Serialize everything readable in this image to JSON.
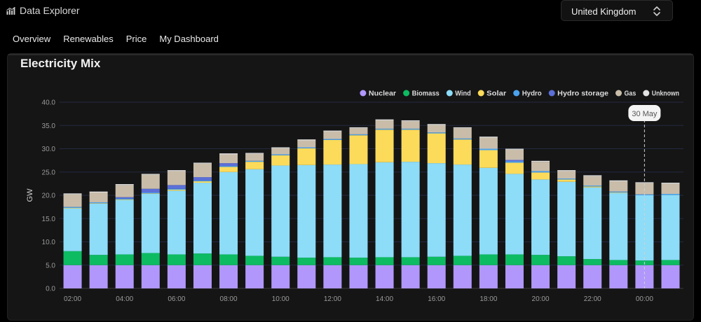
{
  "app": {
    "title": "Data Explorer",
    "icon": "bar-chart-icon"
  },
  "region_select": {
    "value": "United Kingdom",
    "icon": "chevron-up-down-icon"
  },
  "tabs": [
    {
      "label": "Overview"
    },
    {
      "label": "Renewables"
    },
    {
      "label": "Price"
    },
    {
      "label": "My Dashboard"
    }
  ],
  "panel": {
    "title": "Electricity Mix"
  },
  "chart_data": {
    "type": "stacked-bar",
    "title": "Electricity Mix",
    "xlabel": "",
    "ylabel": "GW",
    "ylim": [
      0,
      40
    ],
    "yticks": [
      "0.0",
      "5.0",
      "10.0",
      "15.0",
      "20.0",
      "25.0",
      "30.0",
      "35.0",
      "40.0"
    ],
    "grid": true,
    "legend_position": "top-right",
    "categories": [
      "02:00",
      "03:00",
      "04:00",
      "05:00",
      "06:00",
      "07:00",
      "08:00",
      "09:00",
      "10:00",
      "11:00",
      "12:00",
      "13:00",
      "14:00",
      "15:00",
      "16:00",
      "17:00",
      "18:00",
      "19:00",
      "20:00",
      "21:00",
      "22:00",
      "23:00",
      "00:00",
      "01:00"
    ],
    "xtick_labels": [
      "02:00",
      "04:00",
      "06:00",
      "08:00",
      "10:00",
      "12:00",
      "14:00",
      "16:00",
      "18:00",
      "20:00",
      "22:00",
      "00:00"
    ],
    "series": [
      {
        "name": "Nuclear",
        "color": "#b197fc",
        "values": [
          5.0,
          5.0,
          5.0,
          5.0,
          5.0,
          5.0,
          5.0,
          5.0,
          5.0,
          5.0,
          5.0,
          5.0,
          5.0,
          5.0,
          5.0,
          5.0,
          5.0,
          5.0,
          5.0,
          5.0,
          5.0,
          5.0,
          5.0,
          5.0
        ]
      },
      {
        "name": "Biomass",
        "color": "#0dbb62",
        "values": [
          3.0,
          2.2,
          2.3,
          2.6,
          2.3,
          2.5,
          2.3,
          2.0,
          1.8,
          1.6,
          1.7,
          1.6,
          1.7,
          1.7,
          1.8,
          2.0,
          2.3,
          2.3,
          2.2,
          1.9,
          1.3,
          1.1,
          1.0,
          1.1
        ]
      },
      {
        "name": "Wind",
        "color": "#8ddcf8",
        "values": [
          9.2,
          11.0,
          11.7,
          12.7,
          13.7,
          15.2,
          17.7,
          18.6,
          19.6,
          19.9,
          19.9,
          20.1,
          20.4,
          20.5,
          20.1,
          19.6,
          18.6,
          17.3,
          16.2,
          16.0,
          15.4,
          14.4,
          14.0,
          14.0
        ]
      },
      {
        "name": "Solar",
        "color": "#fcdb5b",
        "values": [
          0.1,
          0.1,
          0.1,
          0.1,
          0.2,
          0.3,
          1.1,
          1.6,
          2.2,
          3.6,
          5.3,
          6.2,
          7.0,
          6.9,
          6.4,
          5.4,
          3.8,
          2.4,
          1.5,
          0.5,
          0.2,
          0.1,
          0.0,
          0.0
        ]
      },
      {
        "name": "Hydro",
        "color": "#4aa3f0",
        "values": [
          0.2,
          0.2,
          0.2,
          0.2,
          0.2,
          0.2,
          0.2,
          0.2,
          0.2,
          0.2,
          0.2,
          0.2,
          0.2,
          0.2,
          0.2,
          0.2,
          0.3,
          0.3,
          0.3,
          0.2,
          0.2,
          0.2,
          0.2,
          0.2
        ]
      },
      {
        "name": "Hydro storage",
        "color": "#5c6fd8",
        "values": [
          0.0,
          0.0,
          0.3,
          0.8,
          0.8,
          0.7,
          0.6,
          0.0,
          0.0,
          0.0,
          0.0,
          0.0,
          0.0,
          0.0,
          0.0,
          0.0,
          0.0,
          0.3,
          0.0,
          0.0,
          0.0,
          0.0,
          0.0,
          0.0
        ]
      },
      {
        "name": "Gas",
        "color": "#c9bdaa",
        "values": [
          2.7,
          2.1,
          2.6,
          3.0,
          3.0,
          2.9,
          1.9,
          1.5,
          1.3,
          1.5,
          1.6,
          1.3,
          1.8,
          1.6,
          1.6,
          2.2,
          2.4,
          2.2,
          2.0,
          1.6,
          2.0,
          2.2,
          2.4,
          2.2
        ]
      },
      {
        "name": "Unknown",
        "color": "#e3e3e3",
        "values": [
          0.2,
          0.2,
          0.2,
          0.2,
          0.2,
          0.2,
          0.2,
          0.2,
          0.2,
          0.2,
          0.2,
          0.2,
          0.2,
          0.2,
          0.2,
          0.2,
          0.2,
          0.2,
          0.2,
          0.2,
          0.2,
          0.2,
          0.2,
          0.2
        ]
      }
    ],
    "cursor": {
      "label": "30 May",
      "category": "00:00"
    }
  }
}
